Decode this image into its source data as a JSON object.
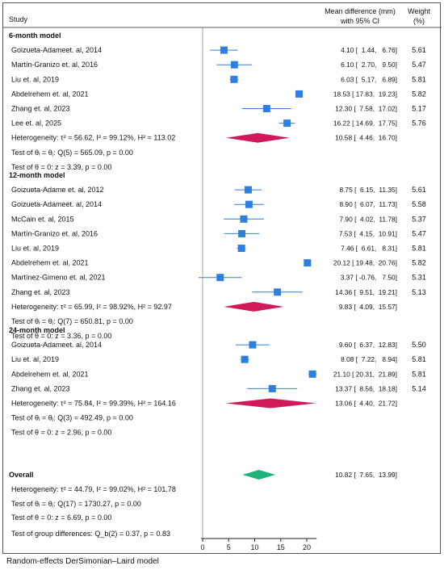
{
  "chart_data": {
    "type": "forest",
    "headers": {
      "study": "Study",
      "effect_line1": "Mean difference (mm)",
      "effect_line2": "with 95% CI",
      "weight_line1": "Weight",
      "weight_line2": "(%)"
    },
    "xaxis": {
      "ticks": [
        0,
        5,
        10,
        15,
        20
      ],
      "xlim": [
        -0.3,
        21.9
      ],
      "reference_line": 0
    },
    "groups": [
      {
        "title": "6-month model",
        "studies": [
          {
            "study": "Goizueta-Adameet. al, 2014",
            "md": 4.1,
            "lo": 1.44,
            "hi": 6.76,
            "ci_text": "4.10 [  1.44,   6.76]",
            "weight": "5.61"
          },
          {
            "study": "Martín-Granizo et. al, 2016",
            "md": 6.1,
            "lo": 2.7,
            "hi": 9.5,
            "ci_text": "6.10 [  2.70,   9.50]",
            "weight": "5.47"
          },
          {
            "study": "Liu et. al, 2019",
            "md": 6.03,
            "lo": 5.17,
            "hi": 6.89,
            "ci_text": "6.03 [  5.17,   6.89]",
            "weight": "5.81"
          },
          {
            "study": "Abdelrehem et. al, 2021",
            "md": 18.53,
            "lo": 17.83,
            "hi": 19.23,
            "ci_text": "18.53 [ 17.83,  19.23]",
            "weight": "5.82"
          },
          {
            "study": "Zhang et. al, 2023",
            "md": 12.3,
            "lo": 7.58,
            "hi": 17.02,
            "ci_text": "12.30 [  7.58,  17.02]",
            "weight": "5.17"
          },
          {
            "study": "Lee et. al, 2025",
            "md": 16.22,
            "lo": 14.69,
            "hi": 17.75,
            "ci_text": "16.22 [ 14.69,  17.75]",
            "weight": "5.76"
          }
        ],
        "pooled": {
          "md": 10.58,
          "lo": 4.46,
          "hi": 16.7,
          "ci_text": "10.58 [  4.46,  16.70]",
          "color": "#d0185a"
        },
        "heterogeneity": "Heterogeneity: τ² = 56.62, I² = 99.12%, H² = 113.02",
        "test_equal": "Test of θᵢ = θⱼ: Q(5) = 565.09, p = 0.00",
        "test_zero": "Test of θ = 0: z = 3.39, p = 0.00"
      },
      {
        "title": "12-month model",
        "studies": [
          {
            "study": "Goizueta-Adame et. al, 2012",
            "md": 8.75,
            "lo": 6.15,
            "hi": 11.35,
            "ci_text": "8.75 [  6.15,  11.35]",
            "weight": "5.61"
          },
          {
            "study": "Goizueta-Adameet. al, 2014",
            "md": 8.9,
            "lo": 6.07,
            "hi": 11.73,
            "ci_text": "8.90 [  6.07,  11.73]",
            "weight": "5.58"
          },
          {
            "study": "McCain et. al, 2015",
            "md": 7.9,
            "lo": 4.02,
            "hi": 11.78,
            "ci_text": "7.90 [  4.02,  11.78]",
            "weight": "5.37"
          },
          {
            "study": "Martín-Granizo et. al, 2016",
            "md": 7.53,
            "lo": 4.15,
            "hi": 10.91,
            "ci_text": "7.53 [  4.15,  10.91]",
            "weight": "5.47"
          },
          {
            "study": "Liu et. al, 2019",
            "md": 7.46,
            "lo": 6.61,
            "hi": 8.31,
            "ci_text": "7.46 [  6.61,   8.31]",
            "weight": "5.81"
          },
          {
            "study": "Abdelrehem et. al, 2021",
            "md": 20.12,
            "lo": 19.48,
            "hi": 20.76,
            "ci_text": "20.12 [ 19.48,  20.76]",
            "weight": "5.82"
          },
          {
            "study": "Martínez-Gimeno et. al, 2021",
            "md": 3.37,
            "lo": -0.76,
            "hi": 7.5,
            "ci_text": "3.37 [ -0.76,   7.50]",
            "weight": "5.31"
          },
          {
            "study": "Zhang et. al, 2023",
            "md": 14.36,
            "lo": 9.51,
            "hi": 19.21,
            "ci_text": "14.36 [  9.51,  19.21]",
            "weight": "5.13"
          }
        ],
        "pooled": {
          "md": 9.83,
          "lo": 4.09,
          "hi": 15.57,
          "ci_text": "9.83 [  4.09,  15.57]",
          "color": "#d0185a"
        },
        "heterogeneity": "Heterogeneity: τ² = 65.99, I² = 98.92%, H² = 92.97",
        "test_equal": "Test of θᵢ = θⱼ: Q(7) = 650.81, p = 0.00",
        "test_zero": "Test of θ = 0: z = 3.36, p = 0.00"
      },
      {
        "title": "24-month model",
        "studies": [
          {
            "study": "Goizueta-Adameet. al, 2014",
            "md": 9.6,
            "lo": 6.37,
            "hi": 12.83,
            "ci_text": "9.60 [  6.37,  12.83]",
            "weight": "5.50"
          },
          {
            "study": "Liu et. al, 2019",
            "md": 8.08,
            "lo": 7.22,
            "hi": 8.94,
            "ci_text": "8.08 [  7.22,   8.94]",
            "weight": "5.81"
          },
          {
            "study": "Abdelrehem et. al, 2021",
            "md": 21.1,
            "lo": 20.31,
            "hi": 21.89,
            "ci_text": "21.10 [ 20.31,  21.89]",
            "weight": "5.81"
          },
          {
            "study": "Zhang et. al, 2023",
            "md": 13.37,
            "lo": 8.56,
            "hi": 18.18,
            "ci_text": "13.37 [  8.56,  18.18]",
            "weight": "5.14"
          }
        ],
        "pooled": {
          "md": 13.06,
          "lo": 4.4,
          "hi": 21.72,
          "ci_text": "13.06 [  4.40,  21.72]",
          "color": "#d0185a"
        },
        "heterogeneity": "Heterogeneity: τ² = 75.84, I² = 99.39%, H² = 164.16",
        "test_equal": "Test of θᵢ = θⱼ: Q(3) = 492.49, p = 0.00",
        "test_zero": "Test of θ = 0: z = 2.96, p = 0.00"
      }
    ],
    "overall": {
      "title": "Overall",
      "md": 10.82,
      "lo": 7.65,
      "hi": 13.99,
      "ci_text": "10.82 [  7.65,  13.99]",
      "color": "#1db37a",
      "heterogeneity": "Heterogeneity: τ² = 44.79, I² = 99.02%, H² = 101.78",
      "test_equal": "Test of θᵢ = θⱼ: Q(17) = 1730.27, p = 0.00",
      "test_zero": "Test of θ = 0: z = 6.69, p = 0.00",
      "group_test": "Test of group differences: Q_b(2) = 0.37, p = 0.83"
    },
    "colors": {
      "marker": "#2e7fe0",
      "ci_line": "#2e7fe0"
    }
  },
  "footer": "Random-effects DerSimonian–Laird model"
}
